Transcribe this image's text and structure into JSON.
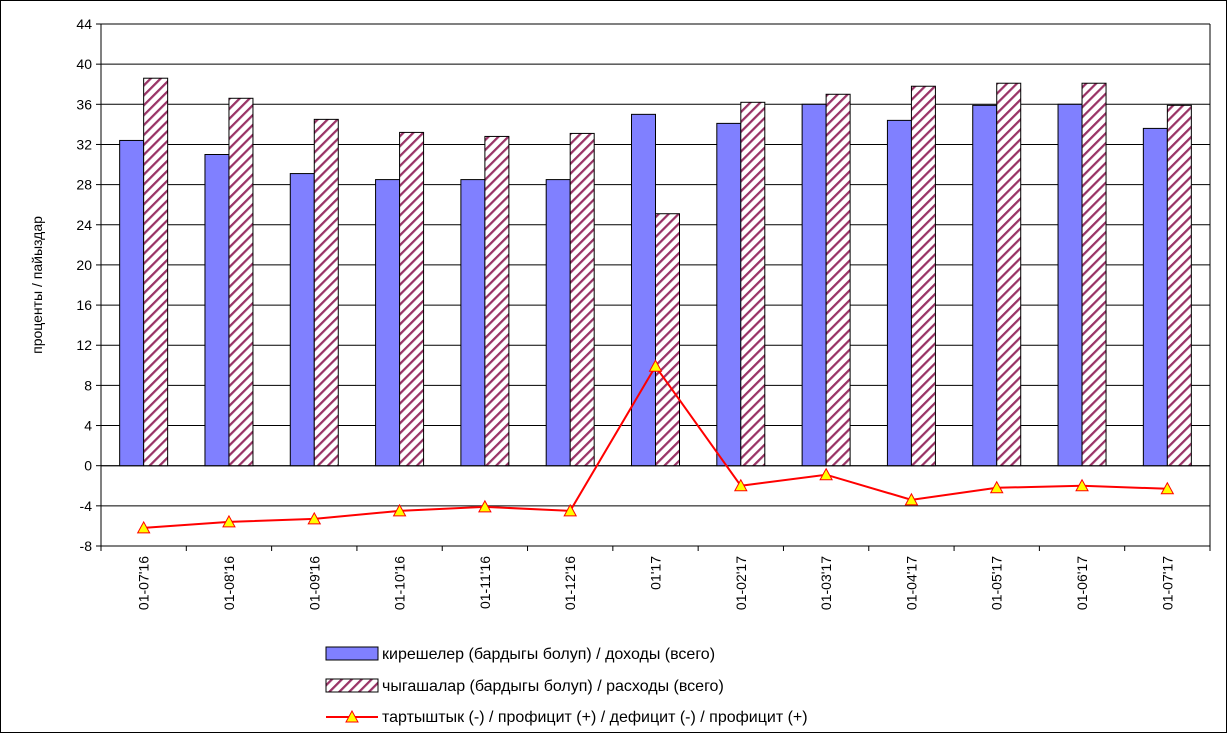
{
  "chart_data": {
    "type": "bar",
    "ylabel": "проценты / пайыздар",
    "ylim": [
      -8,
      44
    ],
    "yticks": [
      -8,
      -4,
      0,
      4,
      8,
      12,
      16,
      20,
      24,
      28,
      32,
      36,
      40,
      44
    ],
    "grid": "horizontal",
    "legend_position": "bottom",
    "categories": [
      "01-07'16",
      "01-08'16",
      "01-09'16",
      "01-10'16",
      "01-11'16",
      "01-12'16",
      "01'17",
      "01-02'17",
      "01-03'17",
      "01-04'17",
      "01-05'17",
      "01-06'17",
      "01-07'17"
    ],
    "series": [
      {
        "name": "кирешелер (бардыгы болуп) / доходы (всего)",
        "type": "bar",
        "color": "#8080ff",
        "values": [
          32.4,
          31.0,
          29.1,
          28.5,
          28.5,
          28.5,
          35.0,
          34.1,
          36.0,
          34.4,
          35.9,
          36.0,
          33.6
        ]
      },
      {
        "name": "чыгашалар (бардыгы болуп) / расходы (всего)",
        "type": "bar",
        "pattern": "diagonal-hatch",
        "color": "#993366",
        "values": [
          38.6,
          36.6,
          34.5,
          33.2,
          32.8,
          33.1,
          25.1,
          36.2,
          37.0,
          37.8,
          38.1,
          38.1,
          35.9
        ]
      },
      {
        "name": "тартыштык (-) / профицит (+) / дефицит (-) / профицит (+)",
        "type": "line",
        "color": "#ff0000",
        "marker": "triangle",
        "marker_color": "#ffff00",
        "values": [
          -6.2,
          -5.6,
          -5.3,
          -4.5,
          -4.1,
          -4.5,
          9.9,
          -2.0,
          -0.9,
          -3.4,
          -2.2,
          -2.0,
          -2.3
        ]
      }
    ]
  }
}
